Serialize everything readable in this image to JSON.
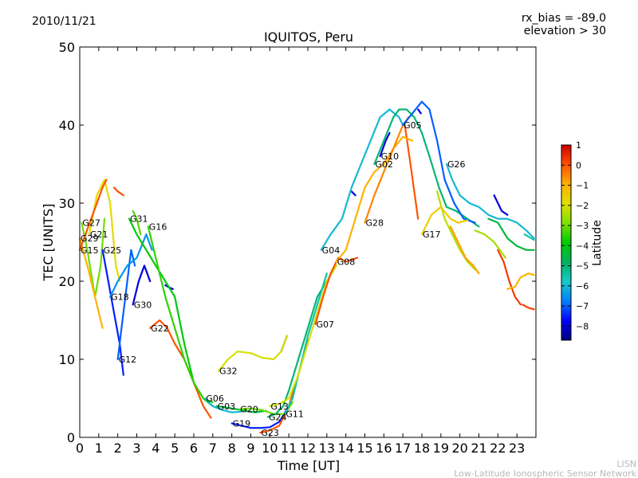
{
  "header": {
    "date": "2010/11/21",
    "rx_bias": "rx_bias = -89.0",
    "elevation": "elevation > 30"
  },
  "credits": {
    "short": "LISN",
    "long": "Low-Latitude Ionospheric Sensor Network"
  },
  "chart_data": {
    "type": "line",
    "title": "IQUITOS, Peru",
    "xlabel": "Time [UT]",
    "ylabel": "TEC [UNITS]",
    "xlim": [
      0,
      24
    ],
    "ylim": [
      0,
      50
    ],
    "xticks": [
      "0",
      "1",
      "2",
      "3",
      "4",
      "5",
      "6",
      "7",
      "8",
      "9",
      "10",
      "11",
      "12",
      "13",
      "14",
      "15",
      "16",
      "17",
      "18",
      "19",
      "20",
      "21",
      "22",
      "23"
    ],
    "yticks": [
      "0",
      "10",
      "20",
      "30",
      "40",
      "50"
    ],
    "colorbar": {
      "label": "Latitude",
      "range": [
        -8.7,
        1.0
      ],
      "ticks": [
        "1",
        "0",
        "−1",
        "−2",
        "−3",
        "−4",
        "−5",
        "−6",
        "−7",
        "−8"
      ],
      "colors": [
        "#00007f",
        "#0000ff",
        "#0080ff",
        "#19c9c9",
        "#00b060",
        "#00cc00",
        "#7fe000",
        "#e0e000",
        "#ffb000",
        "#ff5000",
        "#d00000"
      ]
    },
    "series": [
      {
        "name": "G27",
        "lat": -3.0,
        "points": [
          [
            0.1,
            27.5
          ],
          [
            0.4,
            24
          ],
          [
            0.8,
            18
          ],
          [
            1.1,
            22
          ],
          [
            1.3,
            28
          ]
        ]
      },
      {
        "name": "G21",
        "lat": -1.8,
        "points": [
          [
            0.5,
            26
          ],
          [
            0.9,
            31
          ],
          [
            1.3,
            33
          ],
          [
            1.6,
            30
          ],
          [
            1.9,
            22
          ],
          [
            2.1,
            20
          ]
        ]
      },
      {
        "name": "G29",
        "lat": -1.0,
        "points": [
          [
            0.0,
            25.5
          ],
          [
            0.4,
            22
          ],
          [
            0.9,
            17
          ],
          [
            1.2,
            14
          ]
        ]
      },
      {
        "name": "G15",
        "lat": 0.0,
        "points": [
          [
            0.0,
            24
          ],
          [
            0.3,
            26
          ],
          [
            0.6,
            28
          ],
          [
            0.9,
            30
          ],
          [
            1.2,
            32
          ],
          [
            1.4,
            33
          ]
        ]
      },
      {
        "name": "G25",
        "lat": -7.5,
        "points": [
          [
            1.2,
            24
          ],
          [
            1.5,
            20
          ],
          [
            1.8,
            16
          ],
          [
            2.1,
            12
          ],
          [
            2.3,
            8
          ]
        ]
      },
      {
        "name": "G12",
        "lat": -7.0,
        "points": [
          [
            2.0,
            10
          ],
          [
            2.2,
            14
          ],
          [
            2.5,
            20
          ],
          [
            2.7,
            24
          ],
          [
            2.9,
            22
          ]
        ]
      },
      {
        "name": "G18",
        "lat": -6.5,
        "points": [
          [
            1.6,
            18
          ],
          [
            2.0,
            20
          ],
          [
            2.5,
            22
          ],
          [
            3.0,
            23
          ],
          [
            3.5,
            26
          ],
          [
            3.8,
            24
          ]
        ]
      },
      {
        "name": "G30",
        "lat": -8.0,
        "points": [
          [
            2.8,
            17
          ],
          [
            3.1,
            20
          ],
          [
            3.4,
            22
          ],
          [
            3.7,
            20
          ]
        ]
      },
      {
        "name": "G31",
        "lat": -4.0,
        "points": [
          [
            2.6,
            28
          ],
          [
            3.0,
            26
          ],
          [
            3.5,
            24
          ],
          [
            4.0,
            22
          ],
          [
            4.5,
            20
          ],
          [
            5.0,
            18
          ],
          [
            5.5,
            12
          ],
          [
            6.0,
            7
          ],
          [
            6.5,
            5
          ],
          [
            7.0,
            4
          ]
        ]
      },
      {
        "name": "G22",
        "lat": 0.0,
        "points": [
          [
            3.7,
            14
          ],
          [
            4.2,
            15
          ],
          [
            4.6,
            14
          ],
          [
            5.0,
            12
          ],
          [
            5.5,
            10
          ],
          [
            6.0,
            7
          ],
          [
            6.5,
            4
          ],
          [
            6.9,
            2.5
          ]
        ]
      },
      {
        "name": "G16",
        "lat": -3.5,
        "points": [
          [
            3.6,
            27
          ],
          [
            4.0,
            23
          ],
          [
            4.5,
            18
          ],
          [
            5.0,
            14
          ],
          [
            5.5,
            10
          ],
          [
            6.0,
            7
          ],
          [
            6.5,
            5
          ],
          [
            7.0,
            4.5
          ]
        ]
      },
      {
        "name": "G06",
        "lat": -6.0,
        "points": [
          [
            6.6,
            5
          ],
          [
            7.0,
            4
          ],
          [
            7.5,
            3.5
          ],
          [
            8.0,
            3.2
          ],
          [
            8.5,
            3.3
          ]
        ]
      },
      {
        "name": "G03",
        "lat": -4.5,
        "points": [
          [
            7.2,
            4
          ],
          [
            7.8,
            3.8
          ],
          [
            8.5,
            3.5
          ],
          [
            9.2,
            3.2
          ],
          [
            9.8,
            3.4
          ]
        ]
      },
      {
        "name": "G32",
        "lat": -2.0,
        "points": [
          [
            7.3,
            8.5
          ],
          [
            7.8,
            10
          ],
          [
            8.3,
            11
          ],
          [
            9.0,
            10.8
          ],
          [
            9.6,
            10.2
          ],
          [
            10.2,
            10
          ],
          [
            10.6,
            11
          ],
          [
            10.9,
            13
          ]
        ]
      },
      {
        "name": "G19",
        "lat": -7.5,
        "points": [
          [
            8.0,
            1.8
          ],
          [
            8.5,
            1.5
          ],
          [
            9.0,
            1.2
          ],
          [
            9.5,
            1.2
          ],
          [
            10.0,
            1.3
          ],
          [
            10.5,
            2
          ],
          [
            11.0,
            4
          ]
        ]
      },
      {
        "name": "G20",
        "lat": -3.0,
        "points": [
          [
            8.4,
            3.6
          ],
          [
            9.0,
            3.7
          ],
          [
            9.6,
            3.5
          ],
          [
            10.2,
            3.0
          ],
          [
            10.8,
            3.0
          ],
          [
            11.2,
            4.5
          ]
        ]
      },
      {
        "name": "G23",
        "lat": 0.0,
        "points": [
          [
            9.5,
            0.6
          ],
          [
            10.0,
            0.9
          ],
          [
            10.5,
            1.5
          ],
          [
            11.0,
            4
          ],
          [
            11.5,
            8
          ],
          [
            12.0,
            12.5
          ]
        ]
      },
      {
        "name": "G24",
        "lat": -5.0,
        "points": [
          [
            9.9,
            2.6
          ],
          [
            10.3,
            3.0
          ],
          [
            10.7,
            4
          ],
          [
            11.0,
            6
          ],
          [
            11.5,
            10
          ],
          [
            12.0,
            14
          ],
          [
            12.5,
            18
          ],
          [
            13.0,
            20
          ],
          [
            13.5,
            22
          ]
        ]
      },
      {
        "name": "G11",
        "lat": -5.5,
        "points": [
          [
            10.8,
            3.0
          ],
          [
            11.2,
            5
          ],
          [
            11.6,
            9
          ],
          [
            12.0,
            13
          ],
          [
            12.5,
            17
          ],
          [
            13.0,
            21
          ]
        ]
      },
      {
        "name": "G13",
        "lat": -2.0,
        "points": [
          [
            10.0,
            4.0
          ],
          [
            10.5,
            4.3
          ],
          [
            11.0,
            5
          ],
          [
            11.5,
            8
          ],
          [
            12.0,
            12
          ],
          [
            12.5,
            16
          ],
          [
            13.0,
            20
          ],
          [
            13.5,
            22
          ]
        ]
      },
      {
        "name": "G07",
        "lat": 0.0,
        "points": [
          [
            12.4,
            14.5
          ],
          [
            12.8,
            18
          ],
          [
            13.2,
            21
          ],
          [
            13.6,
            23
          ],
          [
            14.0,
            22.5
          ],
          [
            14.6,
            23
          ]
        ]
      },
      {
        "name": "G08",
        "lat": -1.0,
        "points": [
          [
            13.5,
            22.5
          ],
          [
            14.0,
            24
          ],
          [
            14.5,
            28
          ],
          [
            15.0,
            32
          ],
          [
            15.5,
            34
          ],
          [
            16.0,
            35
          ],
          [
            16.5,
            37
          ],
          [
            17.0,
            38.5
          ],
          [
            17.5,
            38
          ]
        ]
      },
      {
        "name": "G04",
        "lat": -6.0,
        "points": [
          [
            12.7,
            24
          ],
          [
            13.2,
            26
          ],
          [
            13.8,
            28
          ],
          [
            14.3,
            32
          ],
          [
            14.8,
            35
          ],
          [
            15.3,
            38
          ],
          [
            15.8,
            41
          ],
          [
            16.3,
            42
          ],
          [
            16.8,
            41
          ],
          [
            17.0,
            40
          ]
        ]
      },
      {
        "name": "G28",
        "lat": -0.5,
        "points": [
          [
            15.0,
            27.5
          ],
          [
            15.5,
            31
          ],
          [
            16.0,
            34
          ],
          [
            16.5,
            37
          ],
          [
            17.0,
            40
          ],
          [
            17.3,
            41
          ]
        ]
      },
      {
        "name": "G10",
        "lat": -8.0,
        "points": [
          [
            15.8,
            36
          ],
          [
            16.1,
            38
          ],
          [
            16.3,
            39
          ]
        ]
      },
      {
        "name": "G02",
        "lat": -5.0,
        "points": [
          [
            15.5,
            35
          ],
          [
            16.0,
            38
          ],
          [
            16.5,
            41
          ],
          [
            16.8,
            42
          ],
          [
            17.2,
            42
          ],
          [
            17.6,
            41
          ],
          [
            18.0,
            39
          ],
          [
            18.4,
            36
          ],
          [
            18.9,
            32
          ],
          [
            19.3,
            29.5
          ],
          [
            19.8,
            29
          ],
          [
            20.4,
            28
          ],
          [
            21.0,
            27
          ]
        ]
      },
      {
        "name": "G05",
        "lat": -7.0,
        "points": [
          [
            17.0,
            40
          ],
          [
            17.5,
            41.5
          ],
          [
            18.0,
            43
          ],
          [
            18.4,
            42
          ],
          [
            18.8,
            38
          ],
          [
            19.2,
            33
          ],
          [
            19.7,
            30
          ],
          [
            20.2,
            28
          ],
          [
            20.8,
            27.5
          ]
        ]
      },
      {
        "name": "G17",
        "lat": -1.5,
        "points": [
          [
            18.0,
            26
          ],
          [
            18.5,
            28.5
          ],
          [
            19.0,
            29.5
          ],
          [
            19.5,
            28
          ],
          [
            19.9,
            27.5
          ],
          [
            20.4,
            27.8
          ]
        ]
      },
      {
        "name": "G26",
        "lat": -6.0,
        "points": [
          [
            19.3,
            35
          ],
          [
            19.6,
            33
          ],
          [
            20.0,
            31
          ],
          [
            20.5,
            30
          ],
          [
            21.0,
            29.5
          ],
          [
            21.5,
            28.5
          ],
          [
            22.0,
            28
          ],
          [
            22.5,
            28
          ],
          [
            23.0,
            27.5
          ],
          [
            23.5,
            26.5
          ],
          [
            23.9,
            25.5
          ]
        ]
      }
    ],
    "extra_tracks": [
      {
        "lat": 0.0,
        "points": [
          [
            1.8,
            32
          ],
          [
            2.0,
            31.5
          ],
          [
            2.3,
            31
          ]
        ]
      },
      {
        "lat": -3.2,
        "points": [
          [
            2.8,
            29
          ],
          [
            3.0,
            28
          ],
          [
            3.2,
            26
          ]
        ]
      },
      {
        "lat": -8.0,
        "points": [
          [
            4.5,
            19.5
          ],
          [
            4.7,
            19.2
          ],
          [
            4.9,
            19
          ]
        ]
      },
      {
        "lat": -8.5,
        "points": [
          [
            10.6,
            11
          ],
          [
            10.9,
            13
          ]
        ]
      },
      {
        "lat": -8.0,
        "points": [
          [
            14.3,
            31.5
          ],
          [
            14.5,
            31
          ]
        ]
      },
      {
        "lat": -8.0,
        "points": [
          [
            17.8,
            42
          ],
          [
            17.95,
            41.5
          ]
        ]
      },
      {
        "lat": 0.0,
        "points": [
          [
            17.1,
            40
          ],
          [
            17.4,
            35
          ],
          [
            17.8,
            28
          ]
        ]
      },
      {
        "lat": -2.3,
        "points": [
          [
            18.8,
            31.5
          ],
          [
            19.2,
            28
          ],
          [
            19.6,
            26
          ],
          [
            20.0,
            24
          ],
          [
            20.4,
            22.5
          ],
          [
            20.8,
            21.5
          ]
        ]
      },
      {
        "lat": -0.8,
        "points": [
          [
            19.5,
            27
          ],
          [
            19.9,
            25
          ],
          [
            20.3,
            23
          ],
          [
            20.7,
            22
          ],
          [
            21.0,
            21
          ]
        ]
      },
      {
        "lat": -8.0,
        "points": [
          [
            21.8,
            31
          ],
          [
            22.2,
            29
          ],
          [
            22.5,
            28.5
          ]
        ]
      },
      {
        "lat": -4.5,
        "points": [
          [
            21.5,
            28
          ],
          [
            22.0,
            27.5
          ],
          [
            22.5,
            25.5
          ],
          [
            23.0,
            24.5
          ],
          [
            23.5,
            24
          ],
          [
            23.9,
            24
          ]
        ]
      },
      {
        "lat": 0.3,
        "points": [
          [
            22.0,
            24
          ],
          [
            22.3,
            22.5
          ],
          [
            22.6,
            20
          ],
          [
            22.9,
            18
          ],
          [
            23.2,
            17
          ]
        ]
      },
      {
        "lat": -1.0,
        "points": [
          [
            22.5,
            19
          ],
          [
            22.9,
            19.3
          ],
          [
            23.2,
            20.5
          ],
          [
            23.6,
            21
          ],
          [
            23.9,
            20.8
          ]
        ]
      },
      {
        "lat": -2.5,
        "points": [
          [
            20.8,
            26.5
          ],
          [
            21.3,
            26
          ],
          [
            21.8,
            25
          ],
          [
            22.4,
            23
          ]
        ]
      },
      {
        "lat": -5.5,
        "points": [
          [
            23.4,
            26
          ],
          [
            23.9,
            25.3
          ]
        ]
      },
      {
        "lat": 0.2,
        "points": [
          [
            23.3,
            17
          ],
          [
            23.6,
            16.6
          ],
          [
            23.9,
            16.4
          ]
        ]
      }
    ]
  }
}
